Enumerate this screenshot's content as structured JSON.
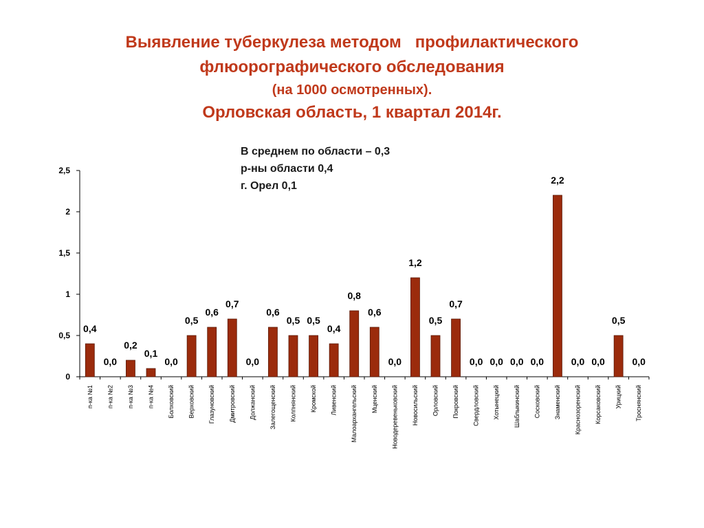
{
  "title": {
    "line1": "Выявление туберкулеза методом   профилактического",
    "line2": "флюорографического обследования",
    "line3": "(на 1000 осмотренных).",
    "line4": "Орловская область, 1 квартал 2014г."
  },
  "notes": {
    "average": "В среднем по области – 0,3",
    "districts": "р-ны области 0,4",
    "city": "г. Орел 0,1"
  },
  "colors": {
    "bar": "#9b2b0c",
    "bar_outline": "#5a1805",
    "title": "#c0391b"
  },
  "chart_data": {
    "type": "bar",
    "ylim": [
      0,
      2.5
    ],
    "yticks": [
      "0",
      "0,5",
      "1",
      "1,5",
      "2",
      "2,5"
    ],
    "categories": [
      "п-ка №1",
      "п-ка №2",
      "п-ка №3",
      "п-ка №4",
      "Болховский",
      "Верховский",
      "Глазуновский",
      "Дмитровский",
      "Должанский",
      "Залегощенский",
      "Колпнянский",
      "Кромской",
      "Ливенский",
      "Малоархангельский",
      "Мценский",
      "Новодеревеньковский",
      "Новосильский",
      "Орловский",
      "Покровский",
      "Свердловский",
      "Хотынецкий",
      "Шаблыкинский",
      "Сосковский",
      "Знаменский",
      "Краснозоренский",
      "Корсаковский",
      "Урицкий",
      "Троснянский"
    ],
    "values": [
      0.4,
      0.0,
      0.2,
      0.1,
      0.0,
      0.5,
      0.6,
      0.7,
      0.0,
      0.6,
      0.5,
      0.5,
      0.4,
      0.8,
      0.6,
      0.0,
      1.2,
      0.5,
      0.7,
      0.0,
      0.0,
      0.0,
      0.0,
      2.2,
      0.0,
      0.0,
      0.5,
      0.0
    ],
    "value_labels": [
      "0,4",
      "0,0",
      "0,2",
      "0,1",
      "0,0",
      "0,5",
      "0,6",
      "0,7",
      "0,0",
      "0,6",
      "0,5",
      "0,5",
      "0,4",
      "0,8",
      "0,6",
      "0,0",
      "1,2",
      "0,5",
      "0,7",
      "0,0",
      "0,0",
      "0,0",
      "0,0",
      "2,2",
      "0,0",
      "0,0",
      "0,5",
      "0,0"
    ]
  }
}
